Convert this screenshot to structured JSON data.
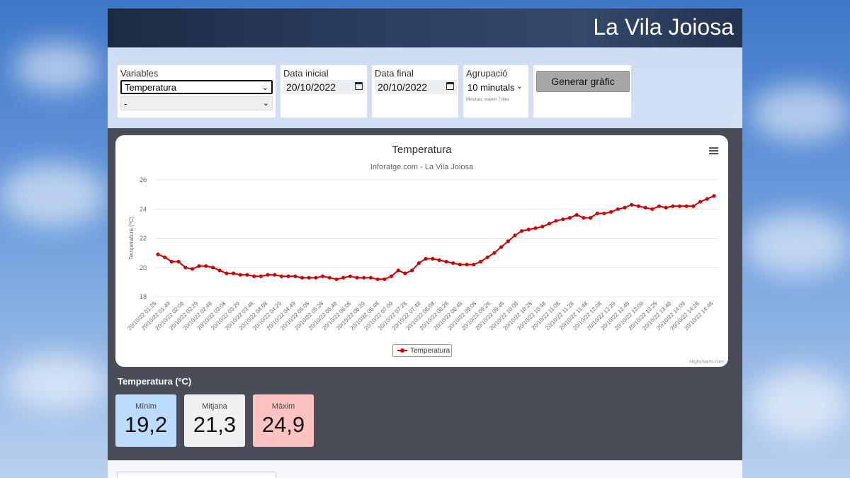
{
  "header": {
    "title": "La Vila Joiosa"
  },
  "controls": {
    "variables": {
      "label": "Variables",
      "selected": "Temperatura",
      "secondary": "-"
    },
    "start_date": {
      "label": "Data inicial",
      "value": "20/10/2022"
    },
    "end_date": {
      "label": "Data final",
      "value": "20/10/2022"
    },
    "grouping": {
      "label": "Agrupació",
      "selected": "10 minutals",
      "hint": "Minutals: màxim 7 dies"
    },
    "generate_button": "Generar gràfic"
  },
  "chart": {
    "menu_icon": "hamburger-icon",
    "credits": "Highcharts.com"
  },
  "chart_data": {
    "type": "line",
    "title": "Temperatura",
    "subtitle": "Inforatge.com - La Vila Joiosa",
    "ylabel": "Temperatura (ºC)",
    "xlabel": "",
    "ylim": [
      18,
      26
    ],
    "yticks": [
      18,
      20,
      22,
      24,
      26
    ],
    "grid": true,
    "legend_position": "bottom-center",
    "color": "#cc0000",
    "tick_labels": [
      "20/10/22 01:28",
      "20/10/22 01:49",
      "20/10/22 02:08",
      "20/10/22 02:29",
      "20/10/22 02:48",
      "20/10/22 03:08",
      "20/10/22 03:29",
      "20/10/22 03:48",
      "20/10/22 04:08",
      "20/10/22 04:29",
      "20/10/22 04:49",
      "20/10/22 05:08",
      "20/10/22 05:28",
      "20/10/22 05:48",
      "20/10/22 06:08",
      "20/10/22 06:29",
      "20/10/22 06:48",
      "20/10/22 07:09",
      "20/10/22 07:28",
      "20/10/22 07:48",
      "20/10/22 08:08",
      "20/10/22 08:28",
      "20/10/22 08:48",
      "20/10/22 09:08",
      "20/10/22 09:28",
      "20/10/22 09:48",
      "20/10/22 10:08",
      "20/10/22 10:28",
      "20/10/22 10:48",
      "20/10/22 11:08",
      "20/10/22 11:28",
      "20/10/22 11:48",
      "20/10/22 12:08",
      "20/10/22 12:29",
      "20/10/22 12:48",
      "20/10/22 13:09",
      "20/10/22 13:28",
      "20/10/22 13:48",
      "20/10/22 14:09",
      "20/10/22 14:28",
      "20/10/22 14:48"
    ],
    "series": [
      {
        "name": "Temperatura",
        "values": [
          20.9,
          20.7,
          20.4,
          20.4,
          20.0,
          19.9,
          20.1,
          20.1,
          20.0,
          19.8,
          19.6,
          19.6,
          19.5,
          19.5,
          19.4,
          19.4,
          19.5,
          19.5,
          19.4,
          19.4,
          19.4,
          19.3,
          19.3,
          19.3,
          19.4,
          19.3,
          19.2,
          19.3,
          19.4,
          19.3,
          19.3,
          19.3,
          19.2,
          19.2,
          19.4,
          19.8,
          19.6,
          19.8,
          20.3,
          20.6,
          20.6,
          20.5,
          20.4,
          20.3,
          20.2,
          20.2,
          20.2,
          20.4,
          20.7,
          21.0,
          21.4,
          21.8,
          22.2,
          22.5,
          22.6,
          22.7,
          22.8,
          23.0,
          23.2,
          23.3,
          23.4,
          23.6,
          23.4,
          23.4,
          23.7,
          23.7,
          23.8,
          24.0,
          24.1,
          24.3,
          24.2,
          24.1,
          24.0,
          24.2,
          24.1,
          24.2,
          24.2,
          24.2,
          24.2,
          24.5,
          24.7,
          24.9
        ]
      }
    ]
  },
  "stats": {
    "title": "Temperatura (ºC)",
    "min": {
      "label": "Mínim",
      "value": "19,2",
      "color": "#bcdcff"
    },
    "avg": {
      "label": "Mitjana",
      "value": "21,3",
      "color": "#f0f0f0"
    },
    "max": {
      "label": "Màxim",
      "value": "24,9",
      "color": "#ffc2c2"
    }
  }
}
